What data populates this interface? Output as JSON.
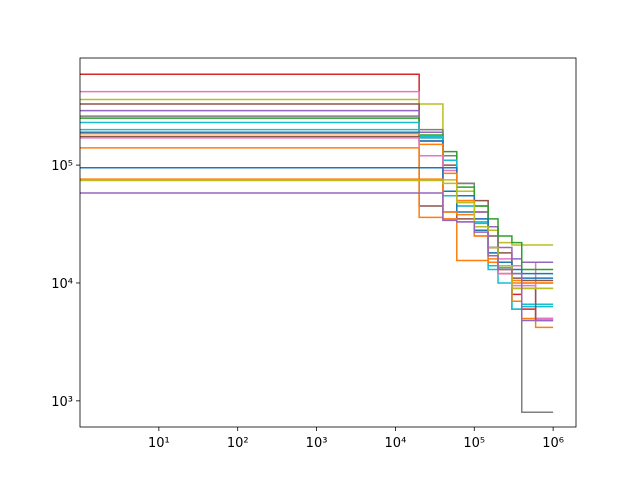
{
  "chart_data": {
    "type": "step",
    "xscale": "log",
    "yscale": "log",
    "xlim": [
      1,
      1950000
    ],
    "ylim": [
      600,
      810000
    ],
    "xticks": [
      {
        "value": 10,
        "label": "10¹"
      },
      {
        "value": 100,
        "label": "10²"
      },
      {
        "value": 1000,
        "label": "10³"
      },
      {
        "value": 10000,
        "label": "10⁴"
      },
      {
        "value": 100000,
        "label": "10⁵"
      },
      {
        "value": 1000000,
        "label": "10⁶"
      }
    ],
    "yticks": [
      {
        "value": 1000,
        "label": "10³"
      },
      {
        "value": 10000,
        "label": "10⁴"
      },
      {
        "value": 100000,
        "label": "10⁵"
      }
    ],
    "x": [
      1,
      20000,
      40000,
      60000,
      100000,
      150000,
      200000,
      300000,
      400000,
      600000,
      1000000
    ],
    "series": [
      {
        "color": "#d62728",
        "values": [
          590000,
          170000,
          110000,
          60000,
          40000,
          25000,
          12000,
          8000,
          6000,
          5000,
          5000
        ]
      },
      {
        "color": "#e377c2",
        "values": [
          420000,
          190000,
          90000,
          45000,
          35000,
          20000,
          16000,
          14000,
          15000,
          5000,
          5000
        ]
      },
      {
        "color": "#bcbd22",
        "values": [
          360000,
          330000,
          75000,
          60000,
          40000,
          28000,
          22000,
          21000,
          21000,
          21000,
          21000
        ]
      },
      {
        "color": "#8c564b",
        "values": [
          330000,
          160000,
          100000,
          70000,
          50000,
          30000,
          18000,
          11000,
          10500,
          10500,
          10500
        ]
      },
      {
        "color": "#9467bd",
        "values": [
          290000,
          190000,
          120000,
          55000,
          40000,
          30000,
          20000,
          16000,
          15000,
          15000,
          15000
        ]
      },
      {
        "color": "#7f7f7f",
        "values": [
          260000,
          200000,
          120000,
          70000,
          45000,
          25000,
          14000,
          7000,
          800,
          800,
          800
        ]
      },
      {
        "color": "#2ca02c",
        "values": [
          250000,
          180000,
          130000,
          65000,
          45000,
          35000,
          25000,
          22000,
          13000,
          13000,
          13000
        ]
      },
      {
        "color": "#17becf",
        "values": [
          230000,
          170000,
          55000,
          45000,
          32000,
          13000,
          13500,
          6000,
          6300,
          6300,
          6300
        ]
      },
      {
        "color": "#17becf",
        "values": [
          200000,
          175000,
          110000,
          50000,
          33000,
          14000,
          10000,
          6000,
          6600,
          6600,
          6600
        ]
      },
      {
        "color": "#1f77b4",
        "values": [
          190000,
          160000,
          95000,
          55000,
          35000,
          20000,
          15000,
          12000,
          11000,
          11000,
          11000
        ]
      },
      {
        "color": "#ff7f0e",
        "values": [
          185000,
          150000,
          85000,
          50000,
          30000,
          16000,
          13000,
          7000,
          5000,
          4200,
          4200
        ]
      },
      {
        "color": "#8c564b",
        "values": [
          175000,
          45000,
          40000,
          35000,
          30000,
          20000,
          14000,
          9000,
          9000,
          4800,
          4800
        ]
      },
      {
        "color": "#e377c2",
        "values": [
          170000,
          120000,
          35000,
          33000,
          25000,
          18000,
          12000,
          9500,
          9500,
          9000,
          9000
        ]
      },
      {
        "color": "#ff7f0e",
        "values": [
          140000,
          36000,
          35000,
          15500,
          15500,
          15000,
          13000,
          10000,
          10000,
          10000,
          10000
        ]
      },
      {
        "color": "#1f77b4",
        "values": [
          95000,
          95000,
          60000,
          40000,
          28000,
          18000,
          15000,
          13000,
          12000,
          12000,
          12000
        ]
      },
      {
        "color": "#ff7f0e",
        "values": [
          76000,
          76000,
          40000,
          38000,
          25000,
          17000,
          14000,
          10500,
          10000,
          10000,
          10000
        ]
      },
      {
        "color": "#bcbd22",
        "values": [
          74000,
          74000,
          70000,
          48000,
          30000,
          20000,
          14000,
          9000,
          9000,
          9000,
          9000
        ]
      },
      {
        "color": "#9467bd",
        "values": [
          58000,
          58000,
          34000,
          33000,
          27000,
          17000,
          13000,
          12000,
          4800,
          4800,
          4800
        ]
      }
    ]
  }
}
